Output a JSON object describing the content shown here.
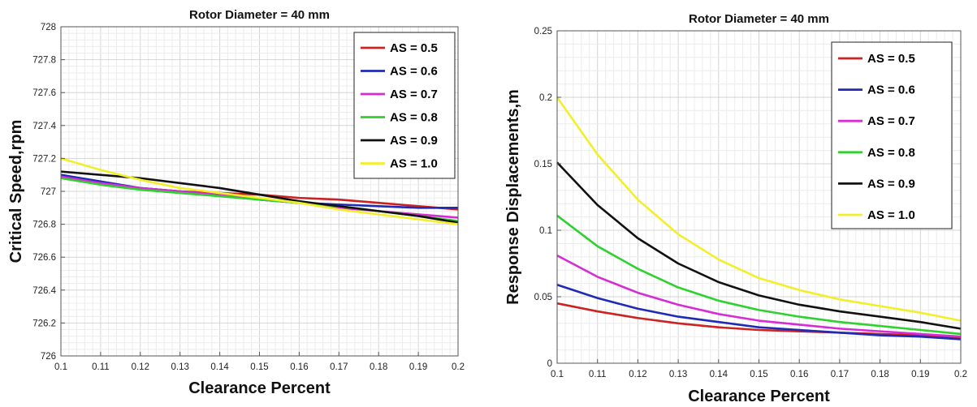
{
  "chart_data": [
    {
      "type": "line",
      "title": "Rotor Diameter = 40 mm",
      "xlabel": "Clearance Percent",
      "ylabel": "Critical Speed,rpm",
      "xlim": [
        0.1,
        0.2
      ],
      "ylim": [
        726,
        728
      ],
      "xticks": [
        "0.1",
        "0.11",
        "0.12",
        "0.13",
        "0.14",
        "0.15",
        "0.16",
        "0.17",
        "0.18",
        "0.19",
        "0.2"
      ],
      "yticks": [
        "726",
        "726.2",
        "726.4",
        "726.6",
        "726.8",
        "727",
        "727.2",
        "727.4",
        "727.6",
        "727.8",
        "728"
      ],
      "grid": true,
      "legend": "top-right",
      "x": [
        0.1,
        0.11,
        0.12,
        0.13,
        0.14,
        0.15,
        0.16,
        0.17,
        0.18,
        0.19,
        0.2
      ],
      "series": [
        {
          "name": "AS = 0.5",
          "color": "#cc2222",
          "values": [
            727.1,
            727.05,
            727.02,
            727.0,
            726.99,
            726.98,
            726.96,
            726.95,
            726.93,
            726.91,
            726.89
          ]
        },
        {
          "name": "AS = 0.6",
          "color": "#1f2bb5",
          "values": [
            727.1,
            727.06,
            727.02,
            727.0,
            726.98,
            726.95,
            726.93,
            726.92,
            726.91,
            726.9,
            726.9
          ]
        },
        {
          "name": "AS = 0.7",
          "color": "#d62cd6",
          "values": [
            727.09,
            727.05,
            727.02,
            727.0,
            726.98,
            726.95,
            726.93,
            726.9,
            726.88,
            726.86,
            726.84
          ]
        },
        {
          "name": "AS = 0.8",
          "color": "#2fd12f",
          "values": [
            727.08,
            727.04,
            727.01,
            726.99,
            726.97,
            726.95,
            726.93,
            726.91,
            726.88,
            726.85,
            726.82
          ]
        },
        {
          "name": "AS = 0.9",
          "color": "#111111",
          "values": [
            727.12,
            727.1,
            727.08,
            727.05,
            727.02,
            726.98,
            726.94,
            726.91,
            726.88,
            726.85,
            726.81
          ]
        },
        {
          "name": "AS = 1.0",
          "color": "#f2ef2a",
          "values": [
            727.2,
            727.13,
            727.07,
            727.02,
            726.99,
            726.96,
            726.93,
            726.89,
            726.86,
            726.83,
            726.8
          ]
        }
      ]
    },
    {
      "type": "line",
      "title": "Rotor Diameter = 40 mm",
      "xlabel": "Clearance Percent",
      "ylabel": "Response Displacements,m",
      "xlim": [
        0.1,
        0.2
      ],
      "ylim": [
        0,
        0.25
      ],
      "xticks": [
        "0.1",
        "0.11",
        "0.12",
        "0.13",
        "0.14",
        "0.15",
        "0.16",
        "0.17",
        "0.18",
        "0.19",
        "0.2"
      ],
      "yticks": [
        "0",
        "0.05",
        "0.1",
        "0.15",
        "0.2",
        "0.25"
      ],
      "grid": true,
      "legend": "top-right",
      "x": [
        0.1,
        0.11,
        0.12,
        0.13,
        0.14,
        0.15,
        0.16,
        0.17,
        0.18,
        0.19,
        0.2
      ],
      "series": [
        {
          "name": "AS = 0.5",
          "color": "#cc2222",
          "values": [
            0.045,
            0.039,
            0.034,
            0.03,
            0.027,
            0.025,
            0.024,
            0.023,
            0.022,
            0.021,
            0.019
          ]
        },
        {
          "name": "AS = 0.6",
          "color": "#1f2bb5",
          "values": [
            0.059,
            0.049,
            0.041,
            0.035,
            0.031,
            0.027,
            0.025,
            0.023,
            0.021,
            0.02,
            0.018
          ]
        },
        {
          "name": "AS = 0.7",
          "color": "#d62cd6",
          "values": [
            0.081,
            0.065,
            0.053,
            0.044,
            0.037,
            0.032,
            0.029,
            0.026,
            0.024,
            0.022,
            0.02
          ]
        },
        {
          "name": "AS = 0.8",
          "color": "#2fd12f",
          "values": [
            0.111,
            0.088,
            0.071,
            0.057,
            0.047,
            0.04,
            0.035,
            0.031,
            0.028,
            0.025,
            0.022
          ]
        },
        {
          "name": "AS = 0.9",
          "color": "#111111",
          "values": [
            0.151,
            0.119,
            0.094,
            0.075,
            0.061,
            0.051,
            0.044,
            0.039,
            0.035,
            0.031,
            0.026
          ]
        },
        {
          "name": "AS = 1.0",
          "color": "#f2ef2a",
          "values": [
            0.2,
            0.157,
            0.123,
            0.097,
            0.078,
            0.064,
            0.055,
            0.048,
            0.043,
            0.038,
            0.032
          ]
        }
      ]
    }
  ]
}
